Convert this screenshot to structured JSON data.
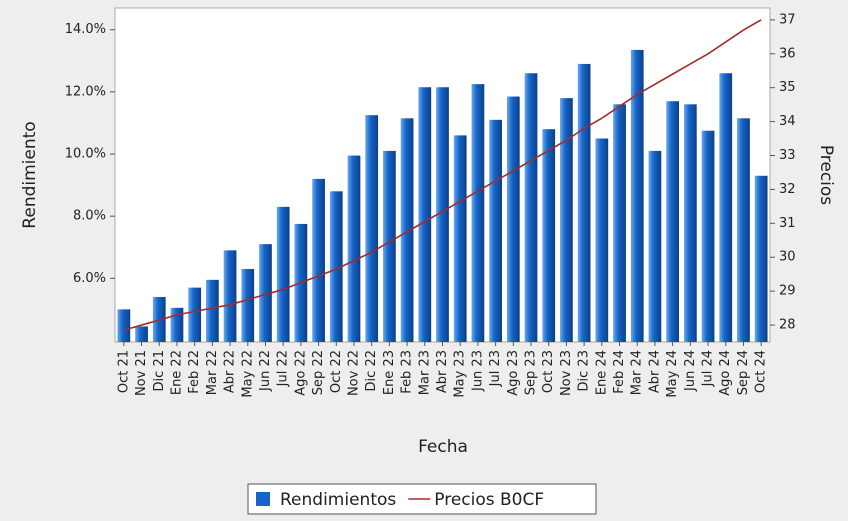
{
  "chart_data": {
    "type": "bar-line",
    "x_label": "Fecha",
    "y_label": "Rendimiento",
    "y2_label": "Precios",
    "categories": [
      "Oct 21",
      "Nov 21",
      "Dic 21",
      "Ene 22",
      "Feb 22",
      "Mar 22",
      "Abr 22",
      "May 22",
      "Jun 22",
      "Jul 22",
      "Ago 22",
      "Sep 22",
      "Oct 22",
      "Nov 22",
      "Dic 22",
      "Ene 23",
      "Feb 23",
      "Mar 23",
      "Abr 23",
      "May 23",
      "Jun 23",
      "Jul 23",
      "Ago 23",
      "Sep 23",
      "Oct 23",
      "Nov 23",
      "Dic 23",
      "Ene 24",
      "Feb 24",
      "Mar 24",
      "Abr 24",
      "May 24",
      "Jun 24",
      "Jul 24",
      "Ago 24",
      "Sep 24",
      "Oct 24"
    ],
    "series": [
      {
        "name": "Rendimientos",
        "type": "bar",
        "color": "#1565c8",
        "values": [
          5.0,
          4.45,
          5.4,
          5.05,
          5.7,
          5.95,
          6.9,
          6.3,
          7.1,
          8.3,
          7.75,
          9.2,
          8.8,
          9.95,
          11.25,
          10.1,
          11.15,
          12.15,
          12.15,
          10.6,
          12.25,
          11.1,
          11.85,
          12.6,
          10.8,
          11.8,
          12.9,
          10.5,
          11.6,
          13.35,
          10.1,
          11.7,
          11.6,
          10.75,
          12.6,
          11.15,
          9.3
        ]
      },
      {
        "name": "Precios B0CF",
        "type": "line",
        "axis": "y2",
        "color": "#a52a2a",
        "values": [
          27.85,
          28.0,
          28.15,
          28.3,
          28.4,
          28.5,
          28.6,
          28.75,
          28.9,
          29.05,
          29.25,
          29.45,
          29.65,
          29.9,
          30.15,
          30.45,
          30.75,
          31.05,
          31.35,
          31.65,
          31.95,
          32.25,
          32.55,
          32.85,
          33.15,
          33.45,
          33.8,
          34.1,
          34.45,
          34.8,
          35.1,
          35.4,
          35.7,
          36.0,
          36.35,
          36.7,
          37.0
        ]
      }
    ],
    "ylim": [
      3.95,
      14.7
    ],
    "yticks": [
      {
        "value": 6,
        "label": "6.0%"
      },
      {
        "value": 8,
        "label": "8.0%"
      },
      {
        "value": 10,
        "label": "10.0%"
      },
      {
        "value": 12,
        "label": "12.0%"
      },
      {
        "value": 14,
        "label": "14.0%"
      }
    ],
    "y2lim": [
      27.5,
      37.35
    ],
    "y2ticks": [
      28,
      29,
      30,
      31,
      32,
      33,
      34,
      35,
      36,
      37
    ],
    "legend": "bottom"
  }
}
